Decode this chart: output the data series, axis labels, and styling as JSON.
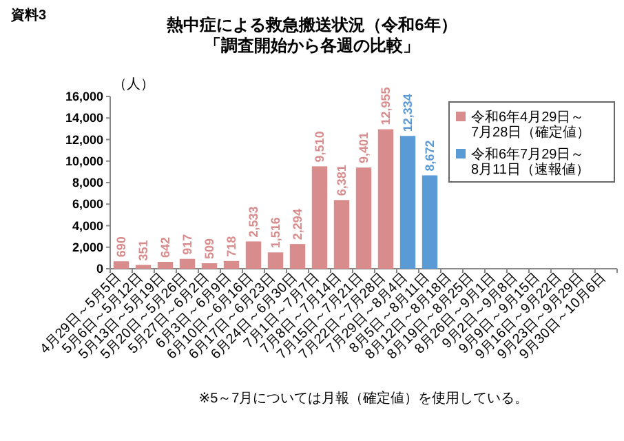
{
  "chart_data": {
    "type": "bar",
    "title": "熱中症による救急搬送状況（令和6年）",
    "subtitle": "「調査開始から各週の比較」",
    "ylabel": "（人）",
    "annotations": [
      "資料3",
      "※5～7月については月報（確定値）を使用している。"
    ],
    "categories": [
      "4月29日～5月5日",
      "5月6日～5月12日",
      "5月13日～5月19日",
      "5月20日～5月26日",
      "5月27日～6月2日",
      "6月3日～6月9日",
      "6月10日～6月16日",
      "6月17日～6月23日",
      "6月24日～6月30日",
      "7月1日～7月7日",
      "7月8日～7月14日",
      "7月15日～7月21日",
      "7月22日～7月28日",
      "7月29日～8月4日",
      "8月5日～8月11日",
      "8月12日～8月18日",
      "8月19日～8月25日",
      "8月26日～9月1日",
      "9月2日～9月8日",
      "9月9日～9月15日",
      "9月16日～9月22日",
      "9月23日～9月29日",
      "9月30日～10月6日"
    ],
    "series": [
      {
        "name": "令和6年4月29日～7月28日（確定値）",
        "color": "#d98c8c",
        "values": [
          690,
          351,
          642,
          917,
          509,
          718,
          2533,
          1516,
          2294,
          9510,
          6381,
          9401,
          12955,
          null,
          null,
          null,
          null,
          null,
          null,
          null,
          null,
          null,
          null
        ],
        "value_labels": [
          "690",
          "351",
          "642",
          "917",
          "509",
          "718",
          "2,533",
          "1,516",
          "2,294",
          "9,510",
          "6,381",
          "9,401",
          "12,955",
          null,
          null,
          null,
          null,
          null,
          null,
          null,
          null,
          null,
          null
        ]
      },
      {
        "name": "令和6年7月29日～8月11日（速報値）",
        "color": "#5b9bd5",
        "values": [
          null,
          null,
          null,
          null,
          null,
          null,
          null,
          null,
          null,
          null,
          null,
          null,
          null,
          12334,
          8672,
          null,
          null,
          null,
          null,
          null,
          null,
          null,
          null
        ],
        "value_labels": [
          null,
          null,
          null,
          null,
          null,
          null,
          null,
          null,
          null,
          null,
          null,
          null,
          null,
          "12,334",
          "8,672",
          null,
          null,
          null,
          null,
          null,
          null,
          null,
          null
        ]
      }
    ],
    "ylim": [
      0,
      16000
    ],
    "yticks": [
      0,
      {
        "value": 2000,
        "label": "2,000"
      },
      {
        "value": 4000,
        "label": "4,000"
      },
      {
        "value": 6000,
        "label": "6,000"
      },
      {
        "value": 8000,
        "label": "8,000"
      },
      {
        "value": 10000,
        "label": "10,000"
      },
      {
        "value": 12000,
        "label": "12,000"
      },
      {
        "value": 14000,
        "label": "14,000"
      },
      {
        "value": 16000,
        "label": "16,000"
      }
    ],
    "legend": "top right"
  }
}
